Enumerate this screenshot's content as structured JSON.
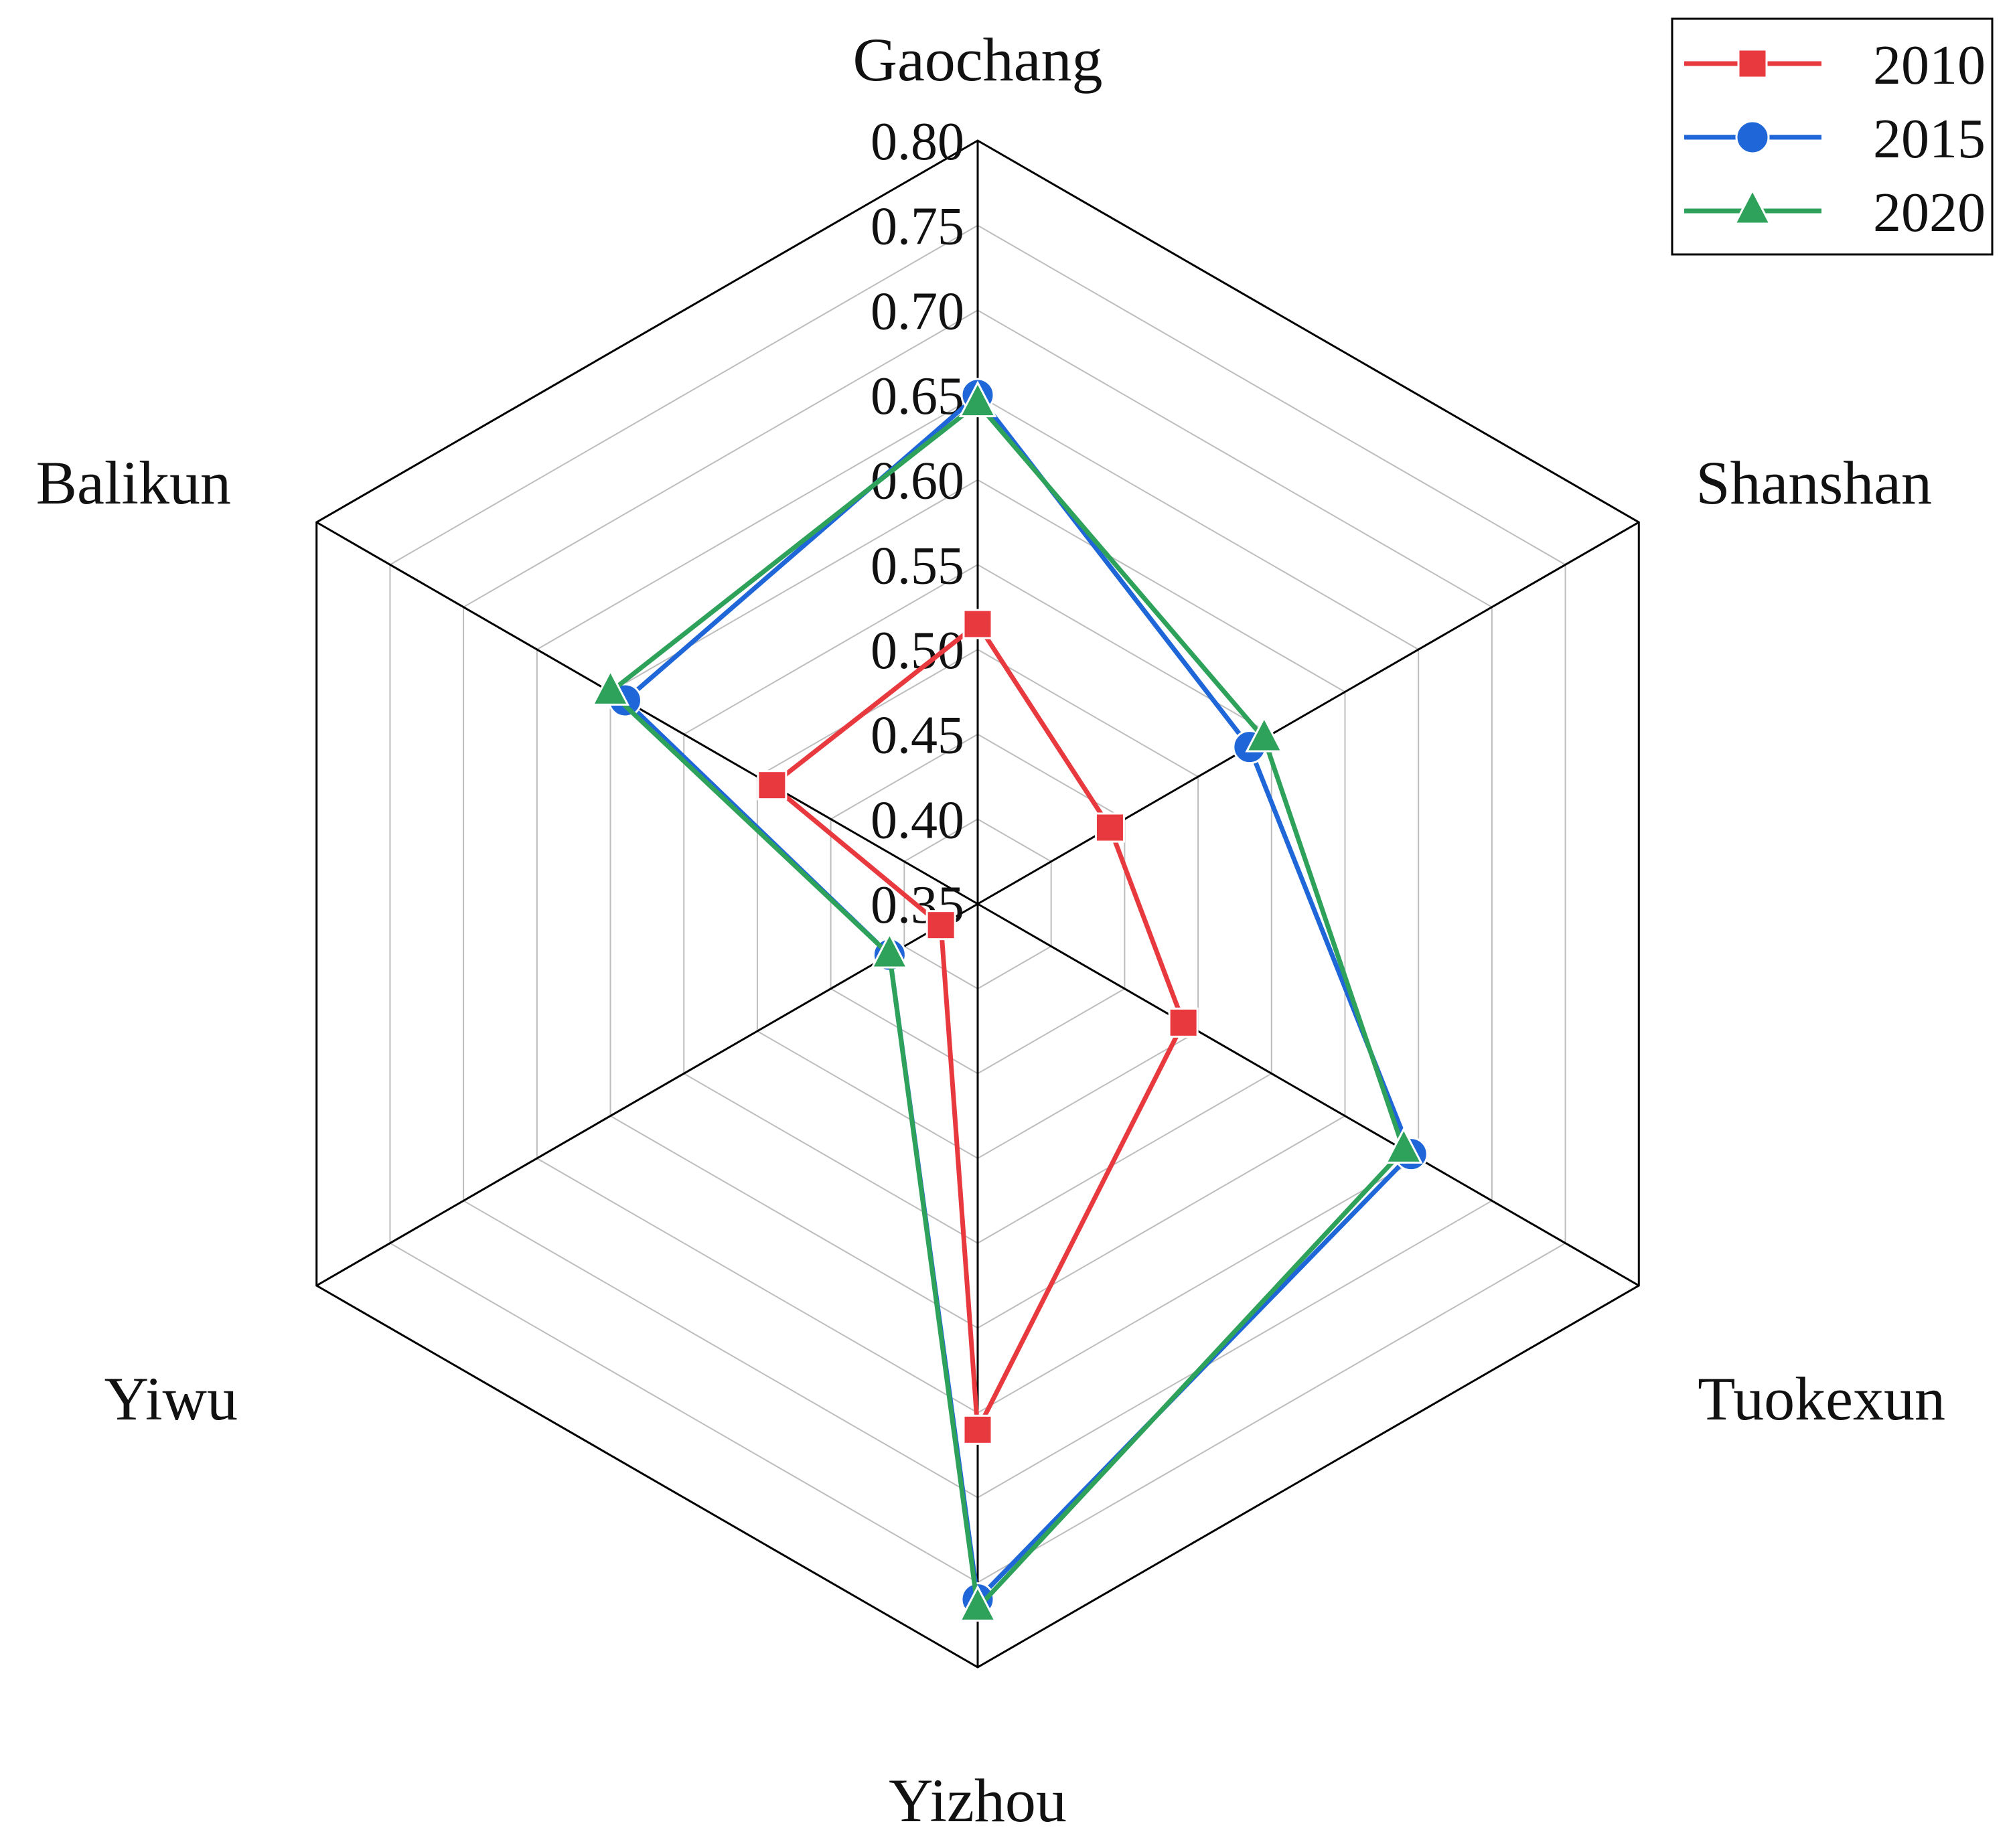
{
  "chart_data": {
    "type": "radar",
    "categories": [
      "Gaochang",
      "Shanshan",
      "Tuokexun",
      "Yizhou",
      "Yiwu",
      "Balikun"
    ],
    "ticks": [
      "0.35",
      "0.40",
      "0.45",
      "0.50",
      "0.55",
      "0.60",
      "0.65",
      "0.70",
      "0.75",
      "0.80"
    ],
    "range": [
      0.35,
      0.8
    ],
    "grid": true,
    "legend_position": "top-right",
    "series": [
      {
        "name": "2010",
        "color": "#e8393f",
        "marker": "square",
        "values": [
          0.515,
          0.44,
          0.49,
          0.66,
          0.375,
          0.49
        ]
      },
      {
        "name": "2015",
        "color": "#1f67d8",
        "marker": "circle",
        "values": [
          0.65,
          0.535,
          0.645,
          0.76,
          0.41,
          0.59
        ]
      },
      {
        "name": "2020",
        "color": "#2ea25a",
        "marker": "triangle",
        "values": [
          0.645,
          0.545,
          0.64,
          0.765,
          0.41,
          0.6
        ]
      }
    ]
  }
}
